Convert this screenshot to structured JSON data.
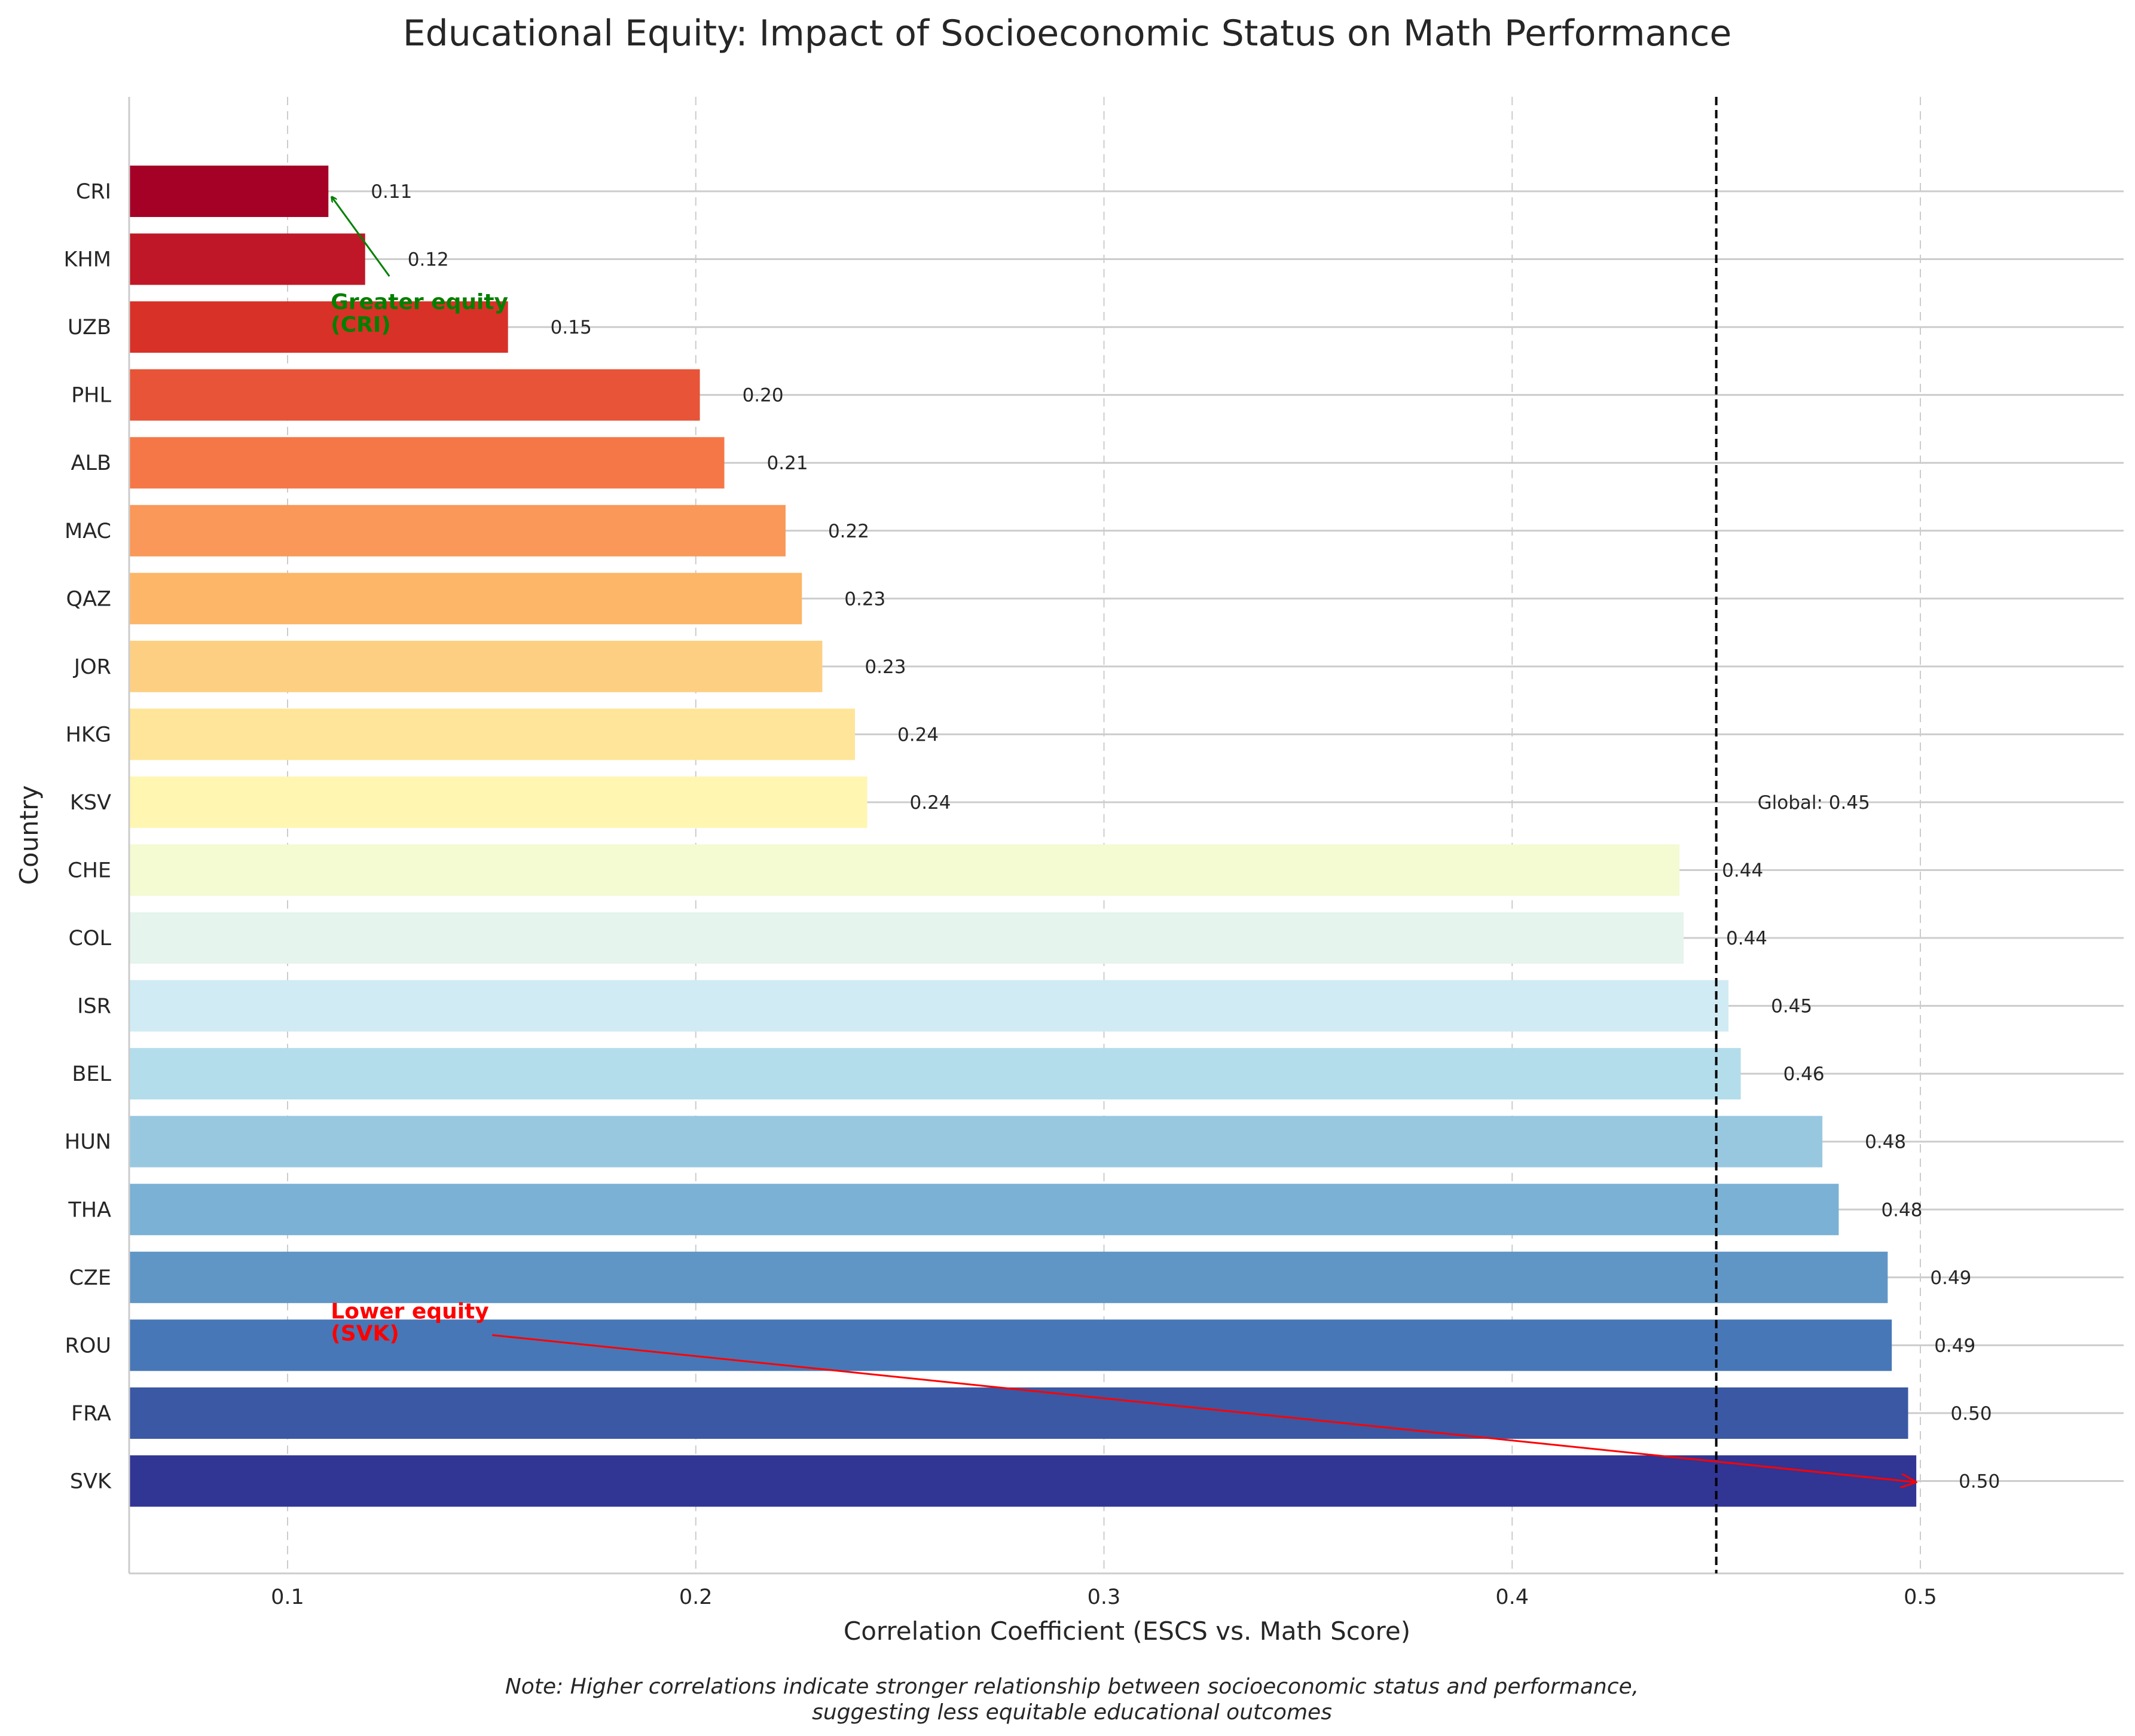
{
  "chart_data": {
    "type": "bar",
    "orientation": "horizontal",
    "title": "Educational Equity: Impact of Socioeconomic Status on Math Performance",
    "xlabel": "Correlation Coefficient (ESCS vs. Math Score)",
    "ylabel": "Country",
    "xlim": [
      0.061,
      0.549
    ],
    "xticks": [
      0.1,
      0.2,
      0.3,
      0.4,
      0.5
    ],
    "xtick_labels": [
      "0.1",
      "0.2",
      "0.3",
      "0.4",
      "0.5"
    ],
    "grid": true,
    "categories": [
      "CRI",
      "KHM",
      "UZB",
      "PHL",
      "ALB",
      "MAC",
      "QAZ",
      "JOR",
      "HKG",
      "KSV",
      "CHE",
      "COL",
      "ISR",
      "BEL",
      "HUN",
      "THA",
      "CZE",
      "ROU",
      "FRA",
      "SVK"
    ],
    "values": [
      0.11,
      0.119,
      0.154,
      0.201,
      0.207,
      0.222,
      0.226,
      0.231,
      0.239,
      0.242,
      0.441,
      0.442,
      0.453,
      0.456,
      0.476,
      0.48,
      0.492,
      0.493,
      0.497,
      0.499
    ],
    "value_labels": [
      "0.11",
      "0.12",
      "0.15",
      "0.20",
      "0.21",
      "0.22",
      "0.23",
      "0.23",
      "0.24",
      "0.24",
      "0.44",
      "0.44",
      "0.45",
      "0.46",
      "0.48",
      "0.48",
      "0.49",
      "0.49",
      "0.50",
      "0.50"
    ],
    "colors": [
      "#a50026",
      "#bf1727",
      "#d83128",
      "#e75437",
      "#f57748",
      "#f99858",
      "#fdb567",
      "#fdcf82",
      "#fee59a",
      "#fff6b2",
      "#f4fad1",
      "#e5f4ec",
      "#d0ebf3",
      "#b3ddeb",
      "#98c8e0",
      "#7ab1d4",
      "#6096c6",
      "#4777b6",
      "#3a58a4",
      "#313594"
    ],
    "reference_line": {
      "value": 0.45,
      "label": "Global: 0.45",
      "style": "dashed",
      "color": "#000000"
    },
    "annotations": [
      {
        "text_line1": "Greater equity",
        "text_line2": "(CRI)",
        "target_category": "CRI",
        "text_x": 0.11,
        "color": "#008000"
      },
      {
        "text_line1": "Lower equity",
        "text_line2": "(SVK)",
        "target_category": "SVK",
        "text_x": 0.11,
        "color": "#ff0000"
      }
    ],
    "note_line1": "Note: Higher correlations indicate stronger relationship between socioeconomic status and performance,",
    "note_line2": "suggesting less equitable educational outcomes"
  }
}
